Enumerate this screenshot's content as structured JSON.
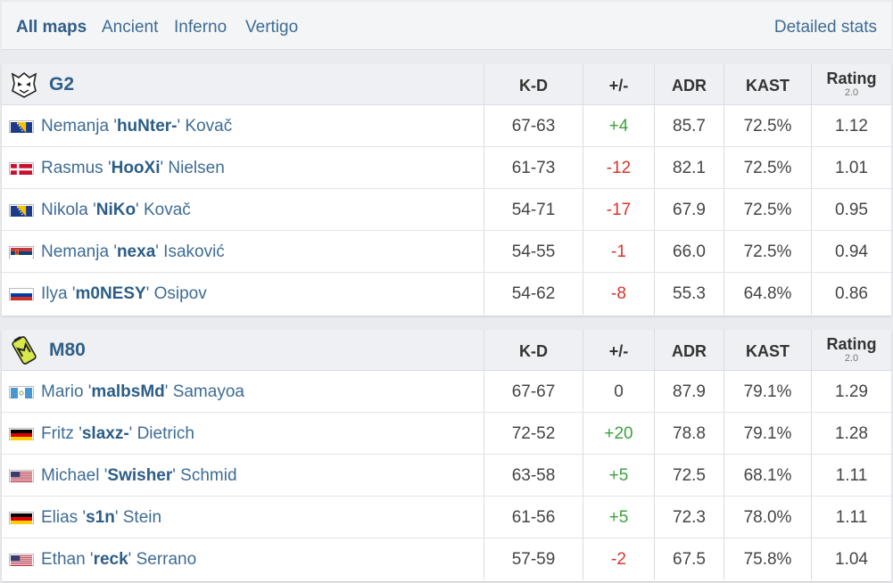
{
  "tabs": {
    "items": [
      "All maps",
      "Ancient",
      "Inferno",
      "Vertigo"
    ],
    "active": "All maps",
    "detailed_stats": "Detailed stats"
  },
  "columns": {
    "kd": "K-D",
    "plus_minus": "+/-",
    "adr": "ADR",
    "kast": "KAST",
    "rating": "Rating",
    "rating_version": "2.0"
  },
  "colors": {
    "positive": "#3da23d",
    "negative": "#d9342b",
    "link": "#3e6c94"
  },
  "teams": [
    {
      "name": "G2",
      "logo": "g2-logo",
      "players": [
        {
          "first": "Nemanja",
          "nick": "huNter-",
          "last": "Kovač",
          "flag": "bosnia",
          "kd": "67-63",
          "pm": "+4",
          "adr": "85.7",
          "kast": "72.5%",
          "rating": "1.12"
        },
        {
          "first": "Rasmus",
          "nick": "HooXi",
          "last": "Nielsen",
          "flag": "denmark",
          "kd": "61-73",
          "pm": "-12",
          "adr": "82.1",
          "kast": "72.5%",
          "rating": "1.01"
        },
        {
          "first": "Nikola",
          "nick": "NiKo",
          "last": "Kovač",
          "flag": "bosnia",
          "kd": "54-71",
          "pm": "-17",
          "adr": "67.9",
          "kast": "72.5%",
          "rating": "0.95"
        },
        {
          "first": "Nemanja",
          "nick": "nexa",
          "last": "Isaković",
          "flag": "serbia",
          "kd": "54-55",
          "pm": "-1",
          "adr": "66.0",
          "kast": "72.5%",
          "rating": "0.94"
        },
        {
          "first": "Ilya",
          "nick": "m0NESY",
          "last": "Osipov",
          "flag": "russia",
          "kd": "54-62",
          "pm": "-8",
          "adr": "55.3",
          "kast": "64.8%",
          "rating": "0.86"
        }
      ]
    },
    {
      "name": "M80",
      "logo": "m80-logo",
      "players": [
        {
          "first": "Mario",
          "nick": "malbsMd",
          "last": "Samayoa",
          "flag": "guatemala",
          "kd": "67-67",
          "pm": "0",
          "adr": "87.9",
          "kast": "79.1%",
          "rating": "1.29"
        },
        {
          "first": "Fritz",
          "nick": "slaxz-",
          "last": "Dietrich",
          "flag": "germany",
          "kd": "72-52",
          "pm": "+20",
          "adr": "78.8",
          "kast": "79.1%",
          "rating": "1.28"
        },
        {
          "first": "Michael",
          "nick": "Swisher",
          "last": "Schmid",
          "flag": "usa",
          "kd": "63-58",
          "pm": "+5",
          "adr": "72.5",
          "kast": "68.1%",
          "rating": "1.11"
        },
        {
          "first": "Elias",
          "nick": "s1n",
          "last": "Stein",
          "flag": "germany",
          "kd": "61-56",
          "pm": "+5",
          "adr": "72.3",
          "kast": "78.0%",
          "rating": "1.11"
        },
        {
          "first": "Ethan",
          "nick": "reck",
          "last": "Serrano",
          "flag": "usa",
          "kd": "57-59",
          "pm": "-2",
          "adr": "67.5",
          "kast": "75.8%",
          "rating": "1.04"
        }
      ]
    }
  ]
}
